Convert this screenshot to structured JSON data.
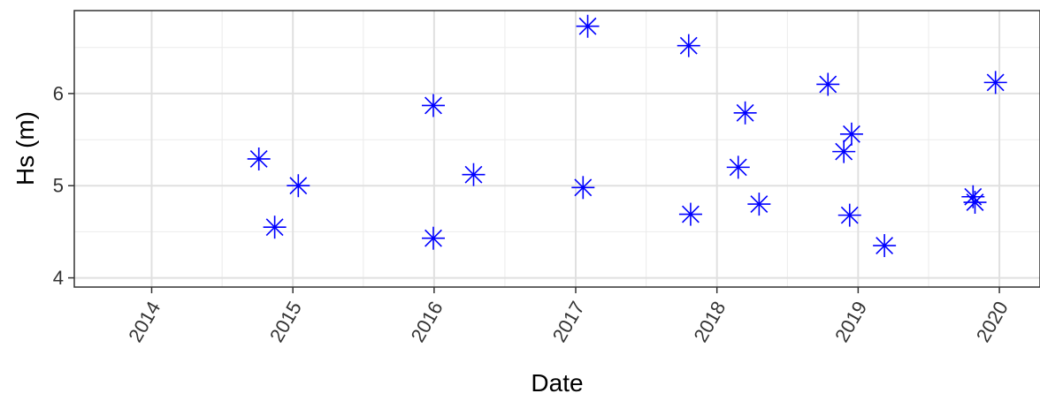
{
  "chart_data": {
    "type": "scatter",
    "xlabel": "Date",
    "ylabel": "Hs (m)",
    "x_type": "date",
    "xlim": [
      "2013-06-15",
      "2020-04-15"
    ],
    "ylim": [
      3.9,
      6.9
    ],
    "x_ticks": [
      "2014-01-01",
      "2015-01-01",
      "2016-01-01",
      "2017-01-01",
      "2018-01-01",
      "2019-01-01",
      "2020-01-01"
    ],
    "x_tick_labels": [
      "2014",
      "2015",
      "2016",
      "2017",
      "2018",
      "2019",
      "2020"
    ],
    "y_ticks": [
      4,
      5,
      6
    ],
    "y_tick_labels": [
      "4",
      "5",
      "6"
    ],
    "grid": true,
    "marker": "asterisk",
    "color": "#0000ff",
    "points": [
      {
        "x": "2014-10-05",
        "y": 5.29
      },
      {
        "x": "2014-11-15",
        "y": 4.55
      },
      {
        "x": "2015-01-15",
        "y": 5.0
      },
      {
        "x": "2015-12-30",
        "y": 5.87
      },
      {
        "x": "2015-12-30",
        "y": 4.43
      },
      {
        "x": "2016-04-12",
        "y": 5.12
      },
      {
        "x": "2017-01-20",
        "y": 4.98
      },
      {
        "x": "2017-02-01",
        "y": 6.73
      },
      {
        "x": "2017-10-20",
        "y": 6.52
      },
      {
        "x": "2017-10-25",
        "y": 4.69
      },
      {
        "x": "2018-02-25",
        "y": 5.2
      },
      {
        "x": "2018-03-15",
        "y": 5.79
      },
      {
        "x": "2018-04-20",
        "y": 4.8
      },
      {
        "x": "2018-10-15",
        "y": 6.1
      },
      {
        "x": "2018-11-25",
        "y": 5.37
      },
      {
        "x": "2018-12-15",
        "y": 5.56
      },
      {
        "x": "2018-12-10",
        "y": 4.68
      },
      {
        "x": "2019-03-10",
        "y": 4.35
      },
      {
        "x": "2019-10-25",
        "y": 4.88
      },
      {
        "x": "2019-10-30",
        "y": 4.82
      },
      {
        "x": "2019-12-22",
        "y": 6.12
      }
    ]
  }
}
